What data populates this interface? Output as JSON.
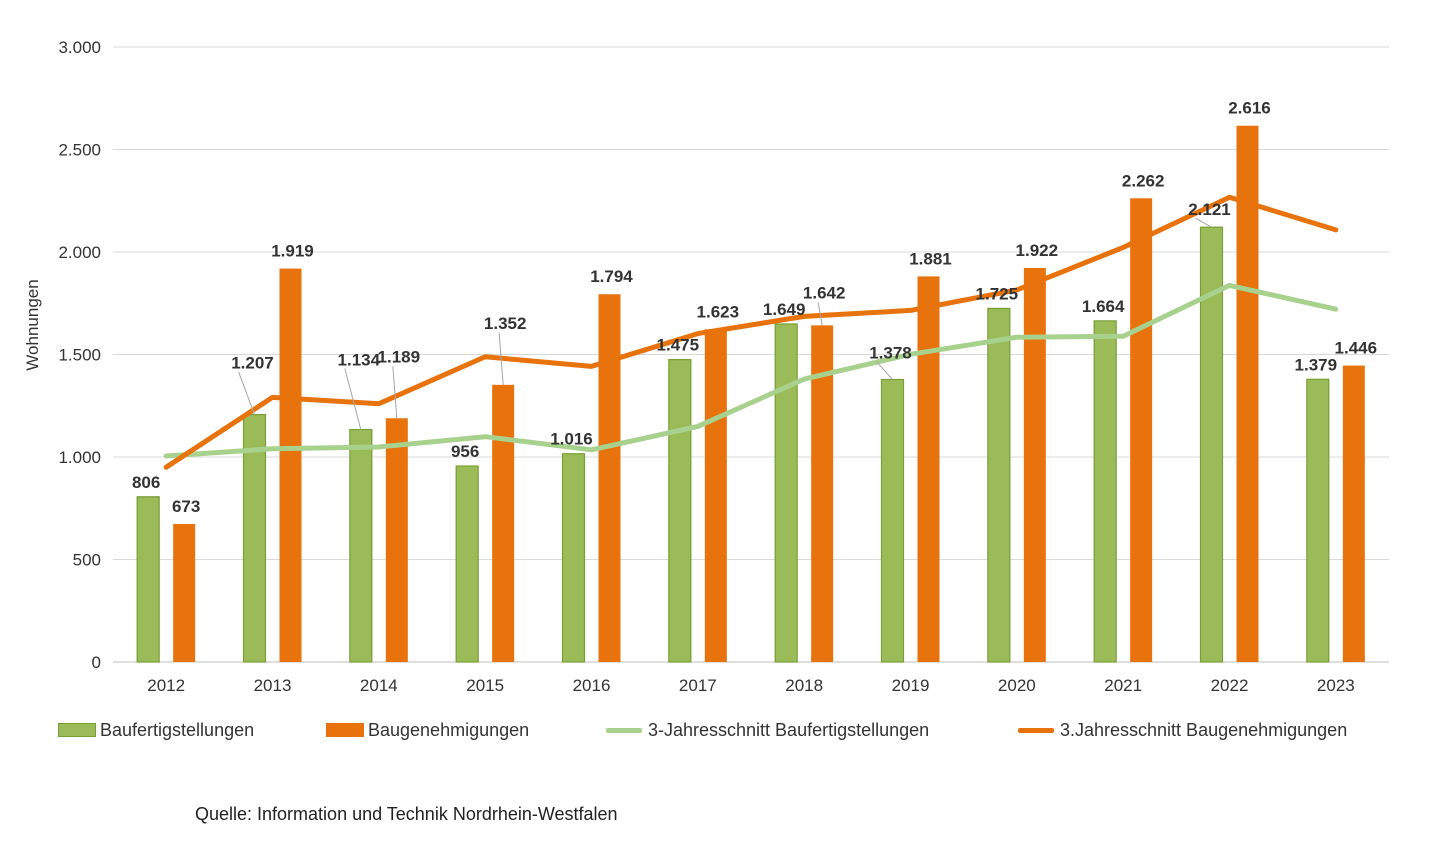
{
  "chart_data": {
    "type": "bar",
    "categories": [
      "2012",
      "2013",
      "2014",
      "2015",
      "2016",
      "2017",
      "2018",
      "2019",
      "2020",
      "2021",
      "2022",
      "2023"
    ],
    "series": [
      {
        "name": "Baufertigstellungen",
        "kind": "bar",
        "values": [
          806,
          1207,
          1134,
          956,
          1016,
          1475,
          1649,
          1378,
          1725,
          1664,
          2121,
          1379
        ],
        "labels": [
          "806",
          "1.207",
          "1.134",
          "956",
          "1.016",
          "1.475",
          "1.649",
          "1.378",
          "1.725",
          "1.664",
          "2.121",
          "1.379"
        ],
        "color": "#9bbb59",
        "border": "#76a035"
      },
      {
        "name": "Baugenehmigungen",
        "kind": "bar",
        "values": [
          673,
          1919,
          1189,
          1352,
          1794,
          1623,
          1642,
          1881,
          1922,
          2262,
          2616,
          1446
        ],
        "labels": [
          "673",
          "1.919",
          "1.189",
          "1.352",
          "1.794",
          "1.623",
          "1.642",
          "1.881",
          "1.922",
          "2.262",
          "2.616",
          "1.446"
        ],
        "color": "#e8720c",
        "border": "#e8720c"
      },
      {
        "name": "3-Jahresschnitt Baufertigstellungen",
        "kind": "line",
        "values": [
          1005,
          1040,
          1049,
          1099,
          1035,
          1149,
          1380,
          1501,
          1584,
          1589,
          1837,
          1721
        ],
        "color": "#a9d18e"
      },
      {
        "name": "3.Jahresschnitt Baugenehmigungen",
        "kind": "line",
        "values": [
          950,
          1291,
          1260,
          1489,
          1442,
          1602,
          1686,
          1715,
          1815,
          2022,
          2267,
          2108
        ],
        "color": "#e8720c"
      }
    ],
    "ylabel": "Wohnungen",
    "ylim": [
      0,
      3000
    ],
    "yticks": [
      0,
      500,
      1000,
      1500,
      2000,
      2500,
      3000
    ],
    "ytick_labels": [
      "0",
      "500",
      "1.000",
      "1.500",
      "2.000",
      "2.500",
      "3.000"
    ],
    "grid": true,
    "legend_position": "bottom"
  },
  "source": "Quelle: Information und Technik Nordrhein-Westfalen"
}
